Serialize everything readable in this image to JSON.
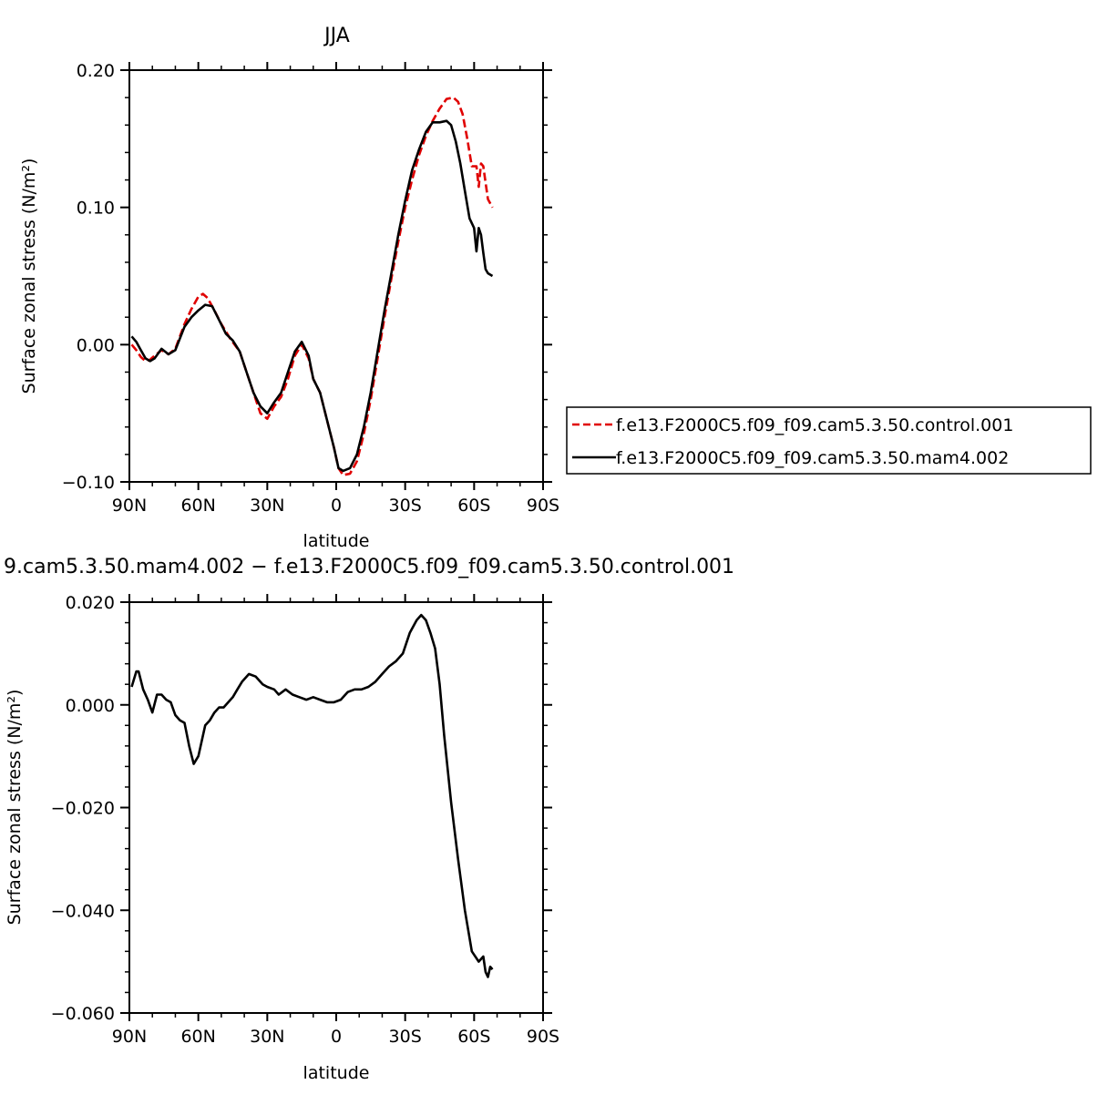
{
  "chart_data": [
    {
      "type": "line",
      "title": "JJA",
      "xlabel": "latitude",
      "ylabel": "Surface zonal stress (N/m²)",
      "xlim": [
        90,
        -90
      ],
      "ylim": [
        -0.1,
        0.2
      ],
      "xticks": [
        {
          "value": 90,
          "label": "90N"
        },
        {
          "value": 60,
          "label": "60N"
        },
        {
          "value": 30,
          "label": "30N"
        },
        {
          "value": 0,
          "label": "0"
        },
        {
          "value": -30,
          "label": "30S"
        },
        {
          "value": -60,
          "label": "60S"
        },
        {
          "value": -90,
          "label": "90S"
        }
      ],
      "yticks": [
        {
          "value": 0.2,
          "label": "0.20"
        },
        {
          "value": 0.1,
          "label": "0.10"
        },
        {
          "value": 0.0,
          "label": "0.00"
        },
        {
          "value": -0.1,
          "label": "−0.10"
        }
      ],
      "legend": "right",
      "series": [
        {
          "name": "f.e13.F2000C5.f09_f09.cam5.3.50.control.001",
          "color": "#e00000",
          "dash": true,
          "x": [
            89,
            87,
            85,
            83,
            81,
            79,
            76,
            73,
            70,
            66,
            63,
            60,
            58,
            56,
            53,
            50,
            46,
            42,
            39,
            36,
            33,
            30,
            27,
            24,
            21,
            18,
            15,
            12,
            10,
            7,
            4,
            1,
            -1,
            -3,
            -6,
            -9,
            -12,
            -15,
            -18,
            -21,
            -24,
            -27,
            -30,
            -33,
            -36,
            -39,
            -42,
            -45,
            -48,
            -51,
            -53,
            -55,
            -57,
            -59,
            -61,
            -62,
            -63,
            -64,
            -65,
            -66,
            -68
          ],
          "values": [
            0.0,
            -0.004,
            -0.009,
            -0.012,
            -0.011,
            -0.008,
            -0.004,
            -0.007,
            -0.003,
            0.015,
            0.026,
            0.035,
            0.037,
            0.034,
            0.025,
            0.015,
            0.004,
            -0.005,
            -0.02,
            -0.035,
            -0.05,
            -0.054,
            -0.045,
            -0.038,
            -0.025,
            -0.008,
            0.0,
            -0.01,
            -0.025,
            -0.035,
            -0.055,
            -0.075,
            -0.09,
            -0.095,
            -0.094,
            -0.085,
            -0.065,
            -0.04,
            -0.01,
            0.02,
            0.048,
            0.075,
            0.1,
            0.12,
            0.138,
            0.152,
            0.163,
            0.172,
            0.179,
            0.18,
            0.177,
            0.168,
            0.15,
            0.13,
            0.13,
            0.115,
            0.132,
            0.13,
            0.118,
            0.106,
            0.1
          ]
        },
        {
          "name": "f.e13.F2000C5.f09_f09.cam5.3.50.mam4.002",
          "color": "#000000",
          "dash": false,
          "x": [
            89,
            87,
            85,
            83,
            81,
            79,
            76,
            73,
            70,
            66,
            63,
            60,
            57,
            54,
            51,
            48,
            45,
            42,
            39,
            36,
            33,
            30,
            27,
            24,
            21,
            18,
            15,
            12,
            10,
            7,
            4,
            1,
            -1,
            -3,
            -6,
            -9,
            -12,
            -15,
            -18,
            -21,
            -24,
            -27,
            -30,
            -33,
            -36,
            -39,
            -42,
            -45,
            -48,
            -50,
            -52,
            -54,
            -56,
            -58,
            -60,
            -61,
            -62,
            -63,
            -64,
            -65,
            -66,
            -68
          ],
          "values": [
            0.006,
            0.002,
            -0.004,
            -0.01,
            -0.012,
            -0.01,
            -0.003,
            -0.007,
            -0.004,
            0.013,
            0.02,
            0.025,
            0.029,
            0.028,
            0.018,
            0.008,
            0.003,
            -0.005,
            -0.02,
            -0.035,
            -0.045,
            -0.05,
            -0.042,
            -0.035,
            -0.02,
            -0.005,
            0.002,
            -0.008,
            -0.025,
            -0.035,
            -0.055,
            -0.075,
            -0.09,
            -0.092,
            -0.09,
            -0.08,
            -0.06,
            -0.035,
            -0.005,
            0.025,
            0.052,
            0.08,
            0.105,
            0.127,
            0.142,
            0.155,
            0.162,
            0.162,
            0.163,
            0.16,
            0.148,
            0.132,
            0.112,
            0.092,
            0.085,
            0.068,
            0.085,
            0.08,
            0.067,
            0.055,
            0.052,
            0.05
          ]
        }
      ]
    },
    {
      "type": "line",
      "title": "9.cam5.3.50.mam4.002 − f.e13.F2000C5.f09_f09.cam5.3.50.control.001",
      "xlabel": "latitude",
      "ylabel": "Surface zonal stress (N/m²)",
      "xlim": [
        90,
        -90
      ],
      "ylim": [
        -0.06,
        0.02
      ],
      "xticks": [
        {
          "value": 90,
          "label": "90N"
        },
        {
          "value": 60,
          "label": "60N"
        },
        {
          "value": 30,
          "label": "30N"
        },
        {
          "value": 0,
          "label": "0"
        },
        {
          "value": -30,
          "label": "30S"
        },
        {
          "value": -60,
          "label": "60S"
        },
        {
          "value": -90,
          "label": "90S"
        }
      ],
      "yticks": [
        {
          "value": 0.02,
          "label": "0.020"
        },
        {
          "value": 0.0,
          "label": "0.000"
        },
        {
          "value": -0.02,
          "label": "−0.020"
        },
        {
          "value": -0.04,
          "label": "−0.040"
        },
        {
          "value": -0.06,
          "label": "−0.060"
        }
      ],
      "series": [
        {
          "color": "#000000",
          "dash": false,
          "x": [
            89,
            87,
            86,
            84,
            82,
            80,
            78,
            76,
            74,
            72,
            70,
            68,
            66,
            64,
            62,
            60,
            57,
            55,
            53,
            51,
            49,
            47,
            45,
            43,
            41,
            38,
            35,
            32,
            30,
            27,
            25,
            22,
            19,
            16,
            13,
            10,
            7,
            4,
            1,
            -2,
            -5,
            -8,
            -11,
            -14,
            -17,
            -20,
            -23,
            -26,
            -29,
            -32,
            -35,
            -37,
            -39,
            -41,
            -43,
            -45,
            -47,
            -50,
            -53,
            -56,
            -59,
            -62,
            -64,
            -65,
            -66,
            -67,
            -68
          ],
          "values": [
            0.0035,
            0.0065,
            0.0065,
            0.003,
            0.001,
            -0.0015,
            0.002,
            0.002,
            0.001,
            0.0005,
            -0.002,
            -0.003,
            -0.0035,
            -0.008,
            -0.0115,
            -0.01,
            -0.004,
            -0.003,
            -0.0015,
            -0.0005,
            -0.0005,
            0.0005,
            0.0015,
            0.003,
            0.0045,
            0.006,
            0.0055,
            0.004,
            0.0035,
            0.003,
            0.002,
            0.003,
            0.002,
            0.0015,
            0.001,
            0.0015,
            0.001,
            0.0005,
            0.0005,
            0.001,
            0.0025,
            0.003,
            0.003,
            0.0035,
            0.0045,
            0.006,
            0.0075,
            0.0085,
            0.01,
            0.014,
            0.0165,
            0.0175,
            0.0165,
            0.014,
            0.011,
            0.004,
            -0.006,
            -0.019,
            -0.03,
            -0.04,
            -0.048,
            -0.05,
            -0.049,
            -0.052,
            -0.053,
            -0.051,
            -0.0515
          ]
        }
      ]
    }
  ]
}
